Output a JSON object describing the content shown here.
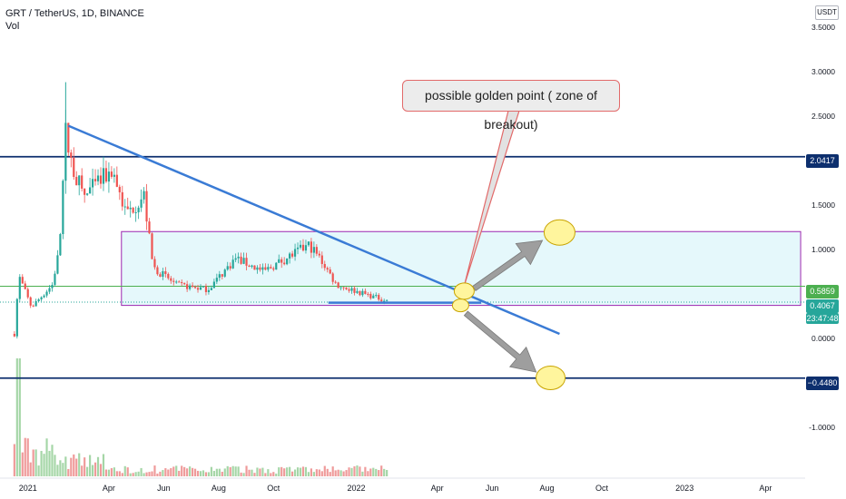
{
  "header": {
    "symbol_line": "GRT / TetherUS, 1D, BINANCE",
    "indicator": "Vol"
  },
  "currency_button": "USDT",
  "chart_data": {
    "type": "candlestick",
    "symbol": "GRT / TetherUS",
    "interval": "1D",
    "exchange": "BINANCE",
    "ylim": [
      -1.45,
      3.6
    ],
    "y_ticks": [
      "3.5000",
      "3.0000",
      "2.5000",
      "2.0000",
      "1.5000",
      "1.0000",
      "0.5000",
      "0.0000",
      "-1.0000"
    ],
    "y_tick_values": [
      3.5,
      3.0,
      2.5,
      2.0,
      1.5,
      1.0,
      0.5,
      0.0,
      -1.0
    ],
    "x_ticks": [
      "2021",
      "Apr",
      "Jun",
      "Aug",
      "Oct",
      "2022",
      "Apr",
      "Jun",
      "Aug",
      "Oct",
      "2023",
      "Apr"
    ],
    "x_tick_dates": [
      "2021-01-01",
      "2021-04-01",
      "2021-06-01",
      "2021-08-01",
      "2021-10-01",
      "2022-01-01",
      "2022-04-01",
      "2022-06-01",
      "2022-08-01",
      "2022-10-01",
      "2023-01-01",
      "2023-04-01"
    ],
    "x_range": [
      "2020-12-01",
      "2023-05-15"
    ],
    "price_path": [
      {
        "date": "2020-12-17",
        "price": 0.05
      },
      {
        "date": "2020-12-22",
        "price": 0.7
      },
      {
        "date": "2021-01-05",
        "price": 0.35
      },
      {
        "date": "2021-01-28",
        "price": 0.6
      },
      {
        "date": "2021-02-05",
        "price": 1.0
      },
      {
        "date": "2021-02-12",
        "price": 2.3
      },
      {
        "date": "2021-02-20",
        "price": 1.9
      },
      {
        "date": "2021-03-05",
        "price": 1.6
      },
      {
        "date": "2021-04-05",
        "price": 1.9
      },
      {
        "date": "2021-04-20",
        "price": 1.4
      },
      {
        "date": "2021-05-10",
        "price": 1.6
      },
      {
        "date": "2021-05-20",
        "price": 0.8
      },
      {
        "date": "2021-06-15",
        "price": 0.6
      },
      {
        "date": "2021-07-20",
        "price": 0.55
      },
      {
        "date": "2021-08-20",
        "price": 0.9
      },
      {
        "date": "2021-09-20",
        "price": 0.75
      },
      {
        "date": "2021-10-15",
        "price": 0.9
      },
      {
        "date": "2021-11-10",
        "price": 1.05
      },
      {
        "date": "2021-11-25",
        "price": 0.85
      },
      {
        "date": "2021-12-10",
        "price": 0.6
      },
      {
        "date": "2022-01-10",
        "price": 0.5
      },
      {
        "date": "2022-02-05",
        "price": 0.42
      }
    ],
    "high_wick": {
      "date": "2021-02-12",
      "price": 2.88
    },
    "volume_spike_date": "2020-12-22",
    "horizontal_levels": [
      {
        "value": 2.0417,
        "label": "2.0417",
        "color": "#0d2f6e"
      },
      {
        "value": -0.448,
        "label": "−0.4480",
        "color": "#0d2f6e"
      },
      {
        "value": 0.5859,
        "label": "0.5859",
        "color": "#4caf50"
      },
      {
        "value": 0.4067,
        "label": "0.4067",
        "color": "#26a69a"
      }
    ],
    "countdown": "23:47:48",
    "trendline": {
      "start": {
        "date": "2021-02-15",
        "price": 2.39
      },
      "end": {
        "date": "2022-08-15",
        "price": 0.05
      },
      "color": "#3a7bd5"
    },
    "support_line": {
      "start": {
        "date": "2021-12-01",
        "price": 0.4
      },
      "end": {
        "date": "2022-05-20",
        "price": 0.4
      },
      "color": "#3a7bd5"
    },
    "range_box": {
      "date_from": "2021-04-15",
      "date_to": "2023-05-10",
      "price_low": 0.37,
      "price_high": 1.2,
      "fill": "#e0f7fa",
      "border": "#9c27b0"
    },
    "ellipses": [
      {
        "date": "2022-05-01",
        "price": 0.53
      },
      {
        "date": "2022-04-27",
        "price": 0.37
      },
      {
        "date": "2022-08-15",
        "price": 1.19
      },
      {
        "date": "2022-08-05",
        "price": -0.445
      }
    ],
    "arrows": [
      {
        "from": {
          "date": "2022-05-12",
          "price": 0.56
        },
        "to": {
          "date": "2022-07-27",
          "price": 1.1
        }
      },
      {
        "from": {
          "date": "2022-05-03",
          "price": 0.28
        },
        "to": {
          "date": "2022-07-20",
          "price": -0.38
        }
      }
    ],
    "annotation": {
      "text": "possible golden point ( zone of breakout)",
      "points_to": {
        "date": "2022-05-01",
        "price": 0.53
      }
    },
    "colors": {
      "up": "#26a69a",
      "down": "#ef5350",
      "volume_up": "#a5d6a7",
      "volume_down": "#ef9a9a",
      "ellipse_fill": "#fff59d",
      "arrow": "#9e9e9e"
    }
  }
}
